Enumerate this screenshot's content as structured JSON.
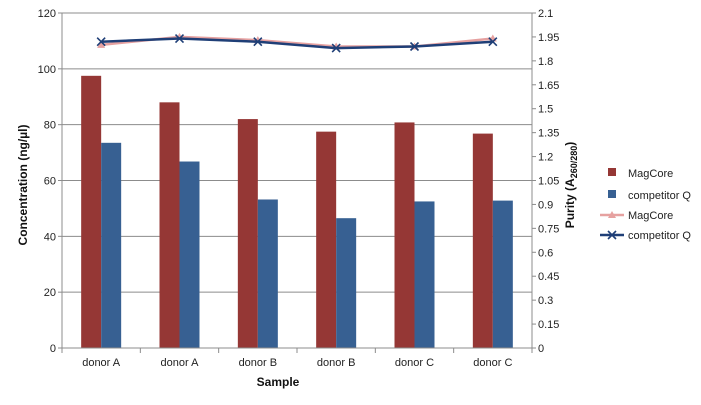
{
  "chart_data": {
    "type": "bar",
    "categories": [
      "donor A",
      "donor A",
      "donor B",
      "donor B",
      "donor C",
      "donor C"
    ],
    "xlabel": "Sample",
    "ylabel": "Concentration (ng/µl)",
    "y2label_main": "Purity (A",
    "y2label_sub": "260/280",
    "y2label_end": ")",
    "ylim": [
      0,
      120
    ],
    "y2lim": [
      0,
      2.1
    ],
    "yticks": [
      "0",
      "20",
      "40",
      "60",
      "80",
      "100",
      "120"
    ],
    "y2ticks": [
      "0",
      "0.15",
      "0.3",
      "0.45",
      "0.6",
      "0.75",
      "0.9",
      "1.05",
      "1.2",
      "1.35",
      "1.5",
      "1.65",
      "1.8",
      "1.95",
      "2.1"
    ],
    "grid": "horizontal",
    "legend": "right",
    "series": [
      {
        "name": "MagCore",
        "kind": "bar",
        "axis": "left",
        "color": "#953735",
        "values": [
          97.5,
          88,
          82,
          77.5,
          80.8,
          76.8
        ]
      },
      {
        "name": "competitor Q",
        "kind": "bar",
        "axis": "left",
        "color": "#376092",
        "values": [
          73.5,
          66.8,
          53.2,
          46.5,
          52.5,
          52.8
        ]
      },
      {
        "name": "MagCore",
        "kind": "line",
        "axis": "right",
        "color": "#E6A1A0",
        "marker": "triangle",
        "values": [
          1.9,
          1.95,
          1.93,
          1.89,
          1.89,
          1.94
        ]
      },
      {
        "name": "competitor Q",
        "kind": "line",
        "axis": "right",
        "color": "#1F3F77",
        "marker": "x",
        "values": [
          1.92,
          1.94,
          1.92,
          1.88,
          1.89,
          1.92
        ]
      }
    ]
  }
}
